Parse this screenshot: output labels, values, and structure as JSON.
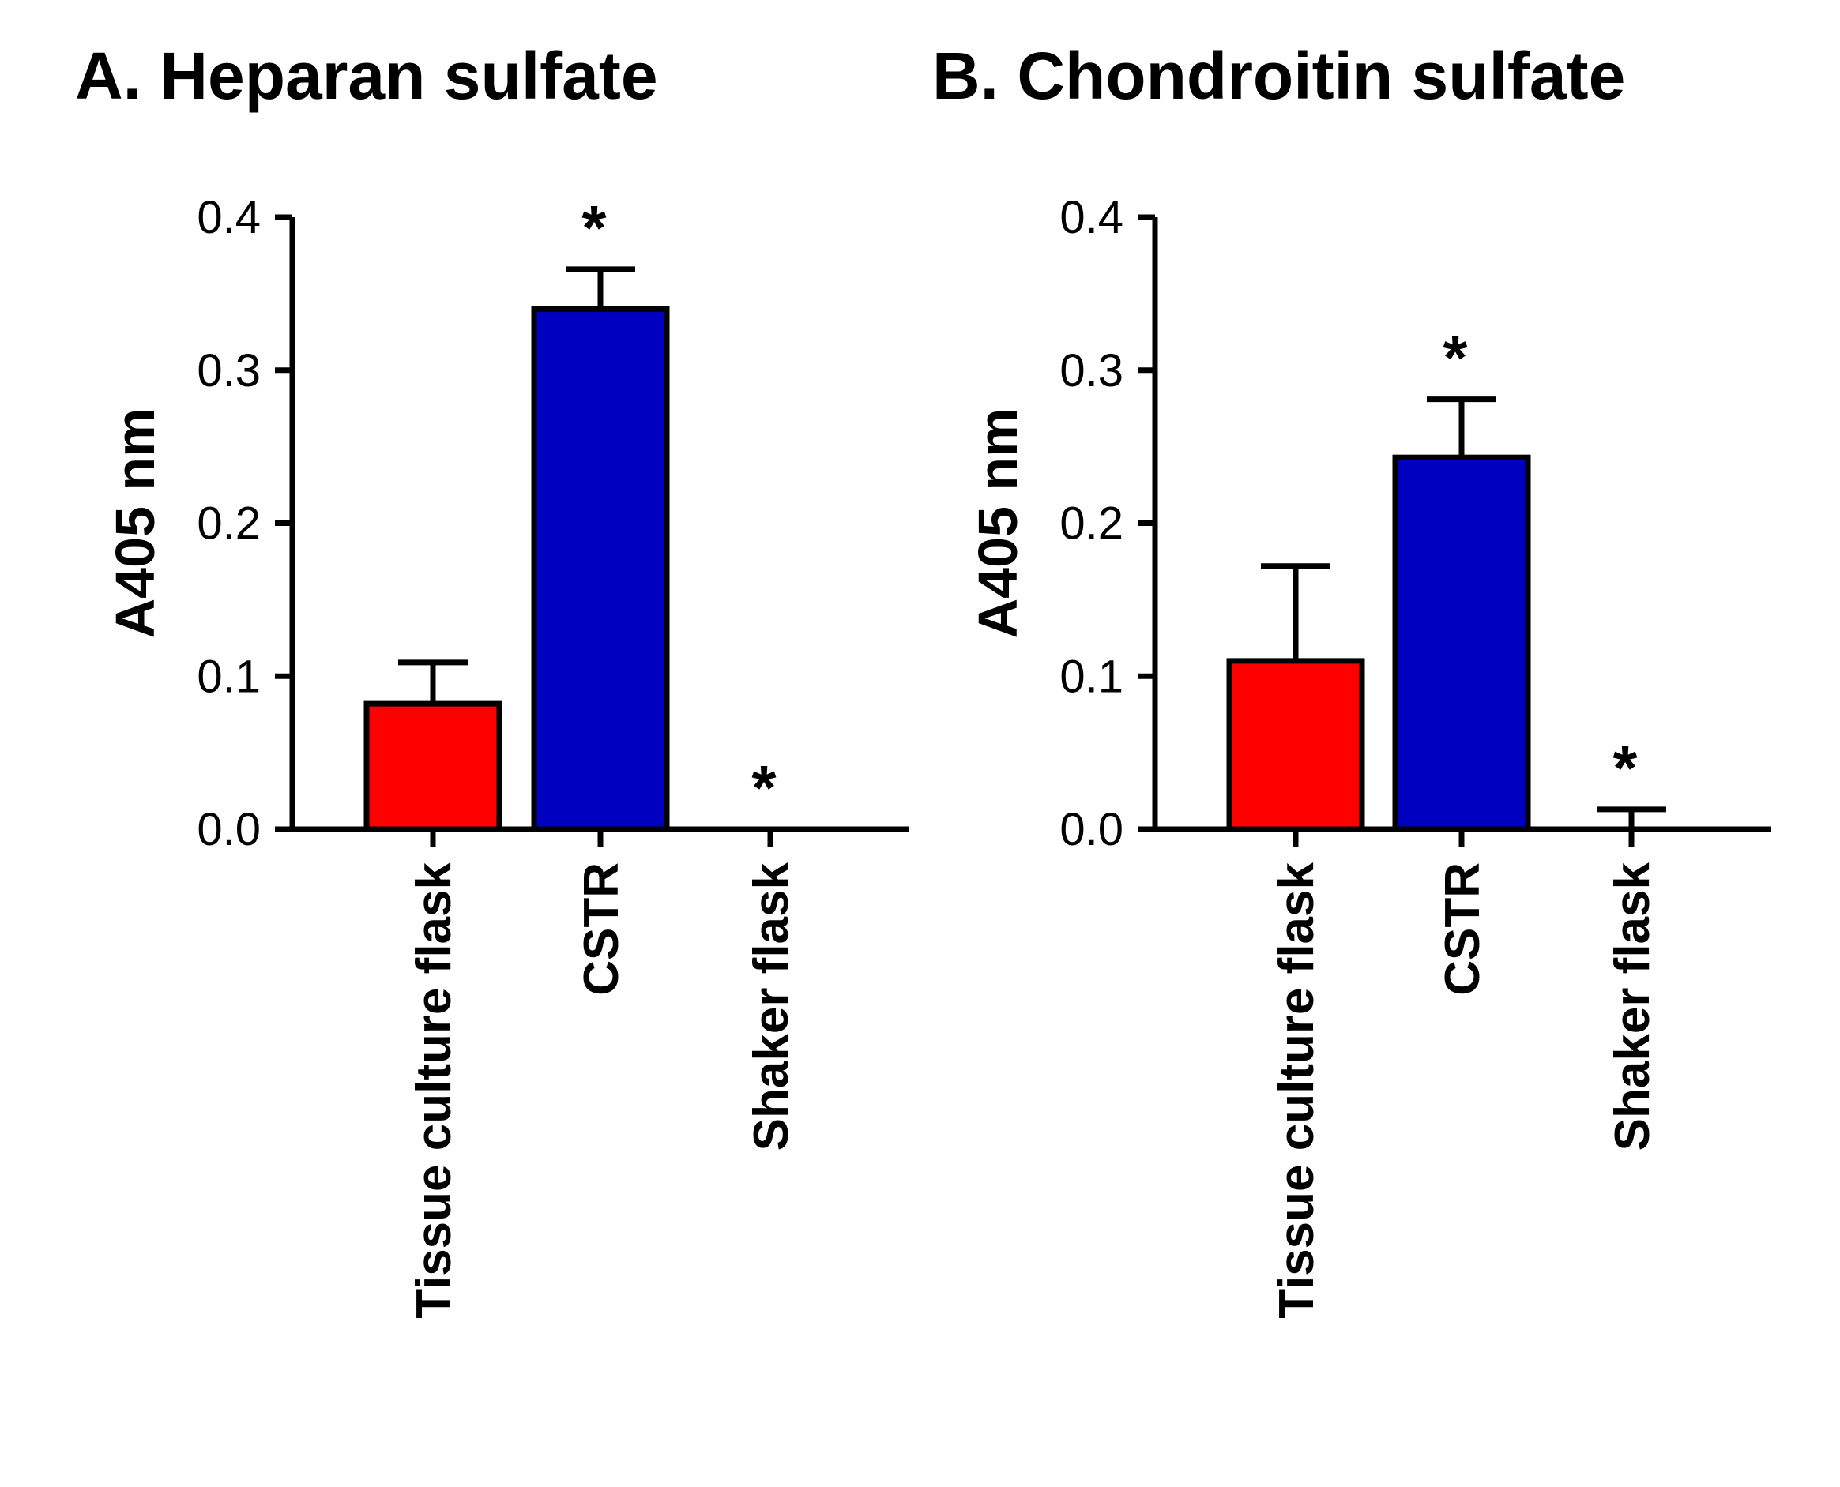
{
  "chart_data": [
    {
      "type": "bar",
      "title": "A. Heparan sulfate",
      "ylabel": "A405 nm",
      "xlabel": "",
      "ylim": [
        0,
        0.4
      ],
      "yticks": [
        "0.0",
        "0.1",
        "0.2",
        "0.3",
        "0.4"
      ],
      "categories": [
        "Tissue culture flask",
        "CSTR",
        "Shaker flask"
      ],
      "values": [
        0.082,
        0.34,
        0.0
      ],
      "errors": [
        0.027,
        0.026,
        0.0
      ],
      "colors": [
        "#ff0000",
        "#0000c0",
        "#ffffff"
      ],
      "significance": [
        "",
        "*",
        "*"
      ],
      "grid": false
    },
    {
      "type": "bar",
      "title": "B. Chondroitin sulfate",
      "ylabel": "A405 nm",
      "xlabel": "",
      "ylim": [
        0,
        0.4
      ],
      "yticks": [
        "0.0",
        "0.1",
        "0.2",
        "0.3",
        "0.4"
      ],
      "categories": [
        "Tissue culture flask",
        "CSTR",
        "Shaker flask"
      ],
      "values": [
        0.11,
        0.243,
        0.0
      ],
      "errors": [
        0.062,
        0.038,
        0.013
      ],
      "colors": [
        "#ff0000",
        "#0000c0",
        "#ffffff"
      ],
      "significance": [
        "",
        "*",
        "*"
      ],
      "grid": false
    }
  ]
}
